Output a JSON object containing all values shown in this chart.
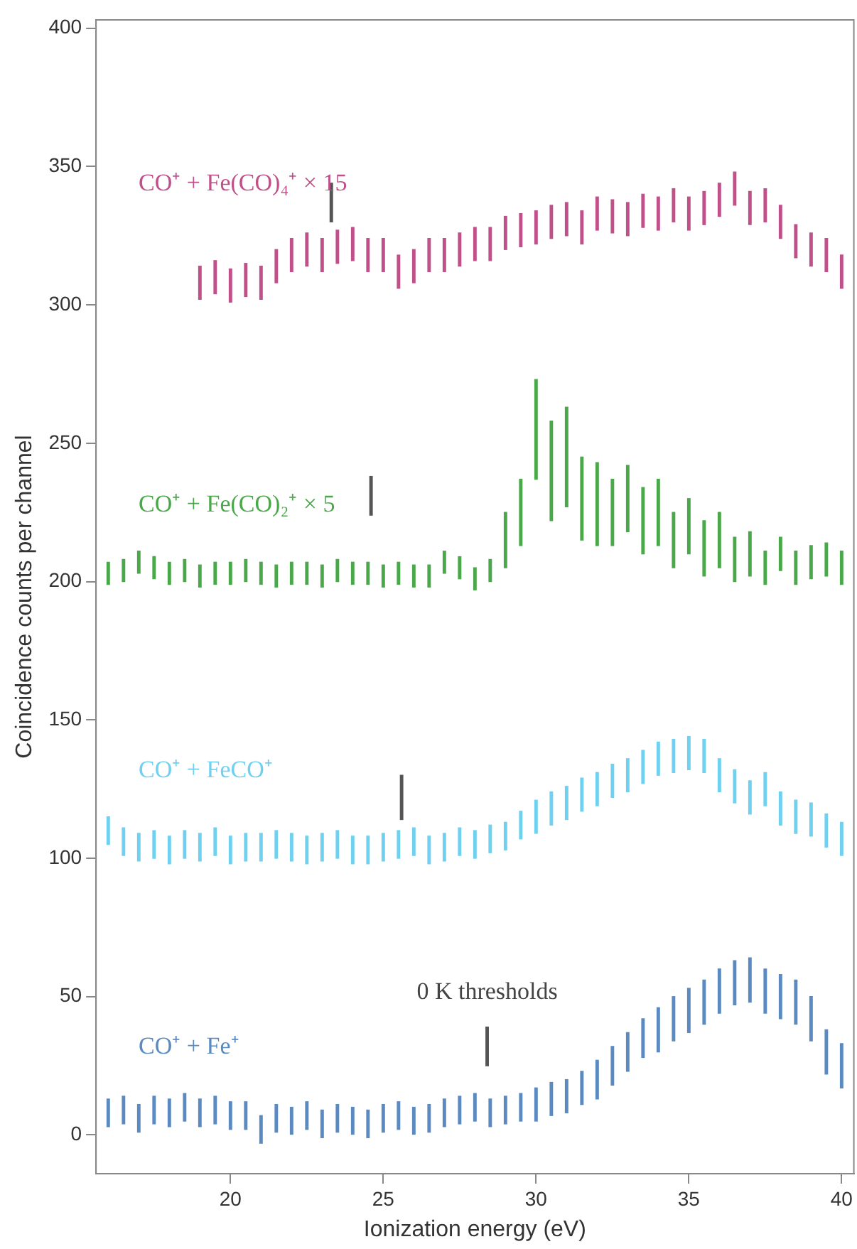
{
  "chart_data": {
    "type": "bar",
    "xlabel": "Ionization energy (eV)",
    "ylabel": "Coincidence counts per channel",
    "xlim": [
      15.6,
      40.4
    ],
    "xticks": [
      20,
      25,
      30,
      35,
      40
    ],
    "ylim": [
      -14,
      403
    ],
    "yticks": [
      0,
      50,
      100,
      150,
      200,
      250,
      300,
      350,
      400
    ],
    "series": [
      {
        "name": "CO⁺ + Fe(CO)₄⁺ × 15",
        "color": "#c0508a",
        "x": [
          19,
          19.5,
          20,
          20.5,
          21,
          21.5,
          22,
          22.5,
          23,
          23.5,
          24,
          24.5,
          25,
          25.5,
          26,
          26.5,
          27,
          27.5,
          28,
          28.5,
          29,
          29.5,
          30,
          30.5,
          31,
          31.5,
          32,
          32.5,
          33,
          33.5,
          34,
          34.5,
          35,
          35.5,
          36,
          36.5,
          37,
          37.5,
          38,
          38.5,
          39,
          39.5,
          40
        ],
        "base": [
          302,
          304,
          301,
          303,
          302,
          308,
          312,
          314,
          312,
          315,
          316,
          312,
          312,
          306,
          308,
          312,
          312,
          314,
          316,
          316,
          320,
          321,
          322,
          324,
          325,
          322,
          327,
          326,
          325,
          328,
          327,
          330,
          327,
          329,
          332,
          336,
          329,
          330,
          324,
          317,
          314,
          312,
          306
        ],
        "values": [
          12,
          12,
          12,
          12,
          12,
          12,
          12,
          12,
          12,
          12,
          12,
          12,
          12,
          12,
          12,
          12,
          12,
          12,
          12,
          12,
          12,
          12,
          12,
          12,
          12,
          12,
          12,
          12,
          12,
          12,
          12,
          12,
          12,
          12,
          12,
          12,
          12,
          12,
          12,
          12,
          12,
          12,
          12
        ]
      },
      {
        "name": "CO⁺ + Fe(CO)₂⁺ × 5",
        "color": "#4aa84a",
        "x": [
          16,
          16.5,
          17,
          17.5,
          18,
          18.5,
          19,
          19.5,
          20,
          20.5,
          21,
          21.5,
          22,
          22.5,
          23,
          23.5,
          24,
          24.5,
          25,
          25.5,
          26,
          26.5,
          27,
          27.5,
          28,
          28.5,
          29,
          29.5,
          30,
          30.5,
          31,
          31.5,
          32,
          32.5,
          33,
          33.5,
          34,
          34.5,
          35,
          35.5,
          36,
          36.5,
          37,
          37.5,
          38,
          38.5,
          39,
          39.5,
          40
        ],
        "base": [
          199,
          200,
          203,
          201,
          199,
          200,
          198,
          199,
          199,
          200,
          199,
          198,
          199,
          199,
          198,
          200,
          199,
          199,
          198,
          199,
          198,
          198,
          203,
          201,
          197,
          200,
          205,
          213,
          237,
          222,
          227,
          215,
          213,
          213,
          218,
          210,
          213,
          205,
          210,
          202,
          205,
          200,
          202,
          199,
          204,
          199,
          201,
          202,
          199
        ],
        "values": [
          8,
          8,
          8,
          8,
          8,
          8,
          8,
          8,
          8,
          8,
          8,
          8,
          8,
          8,
          8,
          8,
          8,
          8,
          8,
          8,
          8,
          8,
          8,
          8,
          8,
          8,
          20,
          24,
          36,
          36,
          36,
          30,
          30,
          24,
          24,
          24,
          24,
          20,
          20,
          20,
          20,
          16,
          16,
          12,
          12,
          12,
          12,
          12,
          12
        ]
      },
      {
        "name": "CO⁺ + FeCO⁺",
        "color": "#6fd0ef",
        "x": [
          16,
          16.5,
          17,
          17.5,
          18,
          18.5,
          19,
          19.5,
          20,
          20.5,
          21,
          21.5,
          22,
          22.5,
          23,
          23.5,
          24,
          24.5,
          25,
          25.5,
          26,
          26.5,
          27,
          27.5,
          28,
          28.5,
          29,
          29.5,
          30,
          30.5,
          31,
          31.5,
          32,
          32.5,
          33,
          33.5,
          34,
          34.5,
          35,
          35.5,
          36,
          36.5,
          37,
          37.5,
          38,
          38.5,
          39,
          39.5,
          40
        ],
        "base": [
          105,
          101,
          99,
          100,
          98,
          100,
          99,
          101,
          98,
          99,
          99,
          100,
          99,
          98,
          99,
          100,
          98,
          98,
          99,
          100,
          101,
          98,
          99,
          101,
          100,
          102,
          103,
          107,
          109,
          112,
          114,
          117,
          119,
          122,
          124,
          127,
          130,
          131,
          132,
          131,
          124,
          120,
          116,
          119,
          112,
          109,
          108,
          104,
          101
        ],
        "values": [
          10,
          10,
          10,
          10,
          10,
          10,
          10,
          10,
          10,
          10,
          10,
          10,
          10,
          10,
          10,
          10,
          10,
          10,
          10,
          10,
          10,
          10,
          10,
          10,
          10,
          10,
          10,
          10,
          12,
          12,
          12,
          12,
          12,
          12,
          12,
          12,
          12,
          12,
          12,
          12,
          12,
          12,
          12,
          12,
          12,
          12,
          12,
          12,
          12
        ]
      },
      {
        "name": "CO⁺ + Fe⁺",
        "color": "#5b8ac0",
        "x": [
          16,
          16.5,
          17,
          17.5,
          18,
          18.5,
          19,
          19.5,
          20,
          20.5,
          21,
          21.5,
          22,
          22.5,
          23,
          23.5,
          24,
          24.5,
          25,
          25.5,
          26,
          26.5,
          27,
          27.5,
          28,
          28.5,
          29,
          29.5,
          30,
          30.5,
          31,
          31.5,
          32,
          32.5,
          33,
          33.5,
          34,
          34.5,
          35,
          35.5,
          36,
          36.5,
          37,
          37.5,
          38,
          38.5,
          39,
          39.5,
          40
        ],
        "base": [
          3,
          4,
          1,
          4,
          3,
          5,
          3,
          4,
          2,
          2,
          -3,
          1,
          0,
          2,
          -1,
          1,
          0,
          -1,
          1,
          2,
          0,
          1,
          3,
          4,
          5,
          3,
          4,
          5,
          5,
          7,
          8,
          11,
          13,
          18,
          23,
          28,
          30,
          34,
          37,
          40,
          44,
          47,
          48,
          44,
          42,
          40,
          34,
          22,
          17
        ],
        "values": [
          10,
          10,
          10,
          10,
          10,
          10,
          10,
          10,
          10,
          10,
          10,
          10,
          10,
          10,
          10,
          10,
          10,
          10,
          10,
          10,
          10,
          10,
          10,
          10,
          10,
          10,
          10,
          10,
          12,
          12,
          12,
          12,
          14,
          14,
          14,
          14,
          16,
          16,
          16,
          16,
          16,
          16,
          16,
          16,
          16,
          16,
          16,
          16,
          16
        ]
      },
      {
        "color": "#555555",
        "x": [
          23.3,
          24.6,
          25.6,
          28.4
        ],
        "base": [
          330,
          224,
          114,
          25
        ],
        "values": [
          14,
          14,
          16,
          14
        ]
      }
    ],
    "annotations": [
      "0 K thresholds"
    ]
  }
}
